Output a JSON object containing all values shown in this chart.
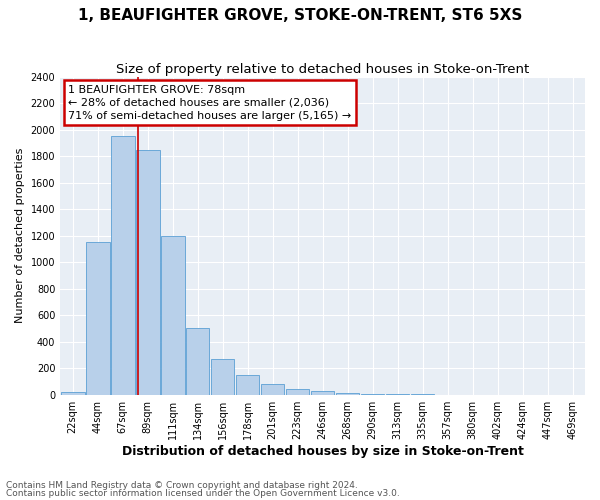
{
  "title": "1, BEAUFIGHTER GROVE, STOKE-ON-TRENT, ST6 5XS",
  "subtitle": "Size of property relative to detached houses in Stoke-on-Trent",
  "xlabel": "Distribution of detached houses by size in Stoke-on-Trent",
  "ylabel": "Number of detached properties",
  "footnote1": "Contains HM Land Registry data © Crown copyright and database right 2024.",
  "footnote2": "Contains public sector information licensed under the Open Government Licence v3.0.",
  "bar_labels": [
    "22sqm",
    "44sqm",
    "67sqm",
    "89sqm",
    "111sqm",
    "134sqm",
    "156sqm",
    "178sqm",
    "201sqm",
    "223sqm",
    "246sqm",
    "268sqm",
    "290sqm",
    "313sqm",
    "335sqm",
    "357sqm",
    "380sqm",
    "402sqm",
    "424sqm",
    "447sqm",
    "469sqm"
  ],
  "bar_values": [
    20,
    1150,
    1950,
    1850,
    1200,
    500,
    270,
    150,
    80,
    40,
    30,
    10,
    5,
    3,
    2,
    1,
    1,
    0,
    0,
    0,
    0
  ],
  "bar_color": "#b8d0ea",
  "bar_edge_color": "#5a9fd4",
  "ylim": [
    0,
    2400
  ],
  "yticks": [
    0,
    200,
    400,
    600,
    800,
    1000,
    1200,
    1400,
    1600,
    1800,
    2000,
    2200,
    2400
  ],
  "vline_x": 2.63,
  "vline_color": "#cc0000",
  "annotation_title": "1 BEAUFIGHTER GROVE: 78sqm",
  "annotation_line1": "← 28% of detached houses are smaller (2,036)",
  "annotation_line2": "71% of semi-detached houses are larger (5,165) →",
  "annotation_box_edgecolor": "#cc0000",
  "background_color": "#e8eef5",
  "grid_color": "#ffffff",
  "title_fontsize": 11,
  "subtitle_fontsize": 9.5,
  "ylabel_fontsize": 8,
  "xlabel_fontsize": 9,
  "tick_fontsize": 7,
  "annotation_fontsize": 8,
  "footnote_fontsize": 6.5
}
